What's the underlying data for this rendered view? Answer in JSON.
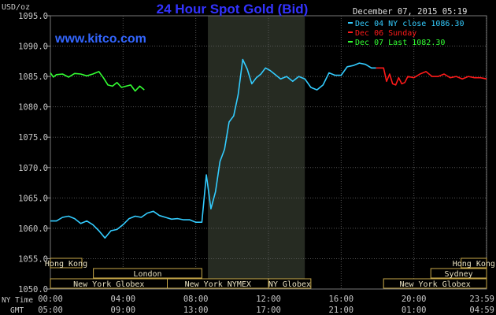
{
  "header": {
    "unit": "USD/oz",
    "title": "24 Hour Spot Gold (Bid)",
    "date": "December 07, 2015 05:19",
    "website": "www.kitco.com"
  },
  "colors": {
    "title": "#3333ff",
    "website": "#3366ff",
    "grid": "#555555",
    "axis_text": "#c8c8c8",
    "highlight": "#262b22",
    "ny_close": "#33ccff",
    "sunday": "#ff1a1a",
    "last": "#33ff33",
    "market_bar_border": "#c8a94a"
  },
  "markets": {
    "row1": [
      {
        "label": "Hong Kong",
        "start": 0,
        "end": 104
      },
      {
        "label": "Hong Kong",
        "start": 1356,
        "end": 1440
      }
    ],
    "row2": [
      {
        "label": "London",
        "start": 142,
        "end": 500
      },
      {
        "label": "Sydney",
        "start": 1256,
        "end": 1440
      }
    ],
    "row3": [
      {
        "label": "New York Globex",
        "start": 0,
        "end": 386
      },
      {
        "label": "New York NYMEX",
        "start": 386,
        "end": 720
      },
      {
        "label": "NY Globex",
        "start": 720,
        "end": 860
      },
      {
        "label": "New York Globex",
        "start": 1100,
        "end": 1440
      }
    ]
  },
  "time_rows": {
    "ny_label": "NY Time",
    "gmt_label": "GMT"
  },
  "chart_data": {
    "type": "line",
    "title": "24 Hour Spot Gold (Bid)",
    "ylabel": "USD/oz",
    "ylim": [
      1050,
      1095
    ],
    "y_ticks": [
      "1050.0",
      "1055.0",
      "1060.0",
      "1065.0",
      "1070.0",
      "1075.0",
      "1080.0",
      "1085.0",
      "1090.0",
      "1095.0"
    ],
    "x_minutes_range": [
      0,
      1440
    ],
    "x_tick_minutes": [
      0,
      240,
      480,
      720,
      960,
      1200,
      1439
    ],
    "x_ticks_ny": [
      "00:00",
      "04:00",
      "08:00",
      "12:00",
      "16:00",
      "20:00",
      "23:59"
    ],
    "x_ticks_gmt": [
      "05:00",
      "09:00",
      "13:00",
      "17:00",
      "21:00",
      "01:00",
      "04:59"
    ],
    "highlight_range_minutes": [
      520,
      840
    ],
    "legend_position": "top-right",
    "legend": [
      {
        "text": "Dec 04 NY close 1086.30",
        "color": "#33ccff"
      },
      {
        "text": "Dec 06 Sunday",
        "color": "#ff1a1a"
      },
      {
        "text": "Dec 07 Last 1082.30",
        "color": "#33ff33"
      }
    ],
    "series": [
      {
        "name": "Dec 04 NY close 1086.30",
        "color": "#33ccff",
        "x": [
          0,
          20,
          40,
          60,
          80,
          100,
          120,
          140,
          160,
          180,
          200,
          220,
          240,
          260,
          280,
          300,
          320,
          340,
          360,
          380,
          400,
          420,
          440,
          460,
          480,
          500,
          515,
          530,
          545,
          560,
          575,
          590,
          605,
          620,
          635,
          650,
          665,
          680,
          695,
          710,
          725,
          740,
          760,
          780,
          800,
          820,
          840,
          860,
          880,
          900,
          920,
          940,
          960,
          980,
          1000,
          1020,
          1040,
          1060,
          1075
        ],
        "y": [
          1061.2,
          1061.2,
          1061.8,
          1062.0,
          1061.6,
          1060.8,
          1061.2,
          1060.6,
          1059.6,
          1058.4,
          1059.6,
          1059.8,
          1060.6,
          1061.6,
          1062.0,
          1061.8,
          1062.5,
          1062.8,
          1062.1,
          1061.8,
          1061.5,
          1061.6,
          1061.4,
          1061.4,
          1061.0,
          1061.0,
          1068.8,
          1063.2,
          1066.0,
          1071.0,
          1073.0,
          1077.5,
          1078.5,
          1082.0,
          1087.8,
          1086.2,
          1083.8,
          1084.8,
          1085.4,
          1086.4,
          1086.0,
          1085.4,
          1084.6,
          1085.0,
          1084.2,
          1085.0,
          1084.6,
          1083.2,
          1082.8,
          1083.6,
          1085.6,
          1085.2,
          1085.2,
          1086.6,
          1086.8,
          1087.2,
          1087.0,
          1086.4,
          1086.4
        ]
      },
      {
        "name": "Dec 06 Sunday",
        "color": "#ff1a1a",
        "x": [
          1075,
          1100,
          1110,
          1120,
          1130,
          1140,
          1150,
          1160,
          1170,
          1180,
          1200,
          1220,
          1240,
          1260,
          1280,
          1300,
          1320,
          1340,
          1360,
          1380,
          1400,
          1420,
          1440
        ],
        "y": [
          1086.4,
          1086.4,
          1084.2,
          1085.4,
          1083.8,
          1083.6,
          1084.8,
          1083.8,
          1084.0,
          1085.0,
          1084.8,
          1085.4,
          1085.8,
          1085.0,
          1085.0,
          1085.4,
          1084.8,
          1085.0,
          1084.6,
          1085.0,
          1084.8,
          1084.8,
          1084.6
        ]
      },
      {
        "name": "Dec 07 Last 1082.30",
        "color": "#33ff33",
        "x": [
          0,
          10,
          20,
          40,
          60,
          80,
          100,
          120,
          140,
          160,
          175,
          190,
          205,
          220,
          235,
          250,
          265,
          280,
          295,
          310
        ],
        "y": [
          1085.6,
          1084.9,
          1085.3,
          1085.4,
          1084.9,
          1085.5,
          1085.4,
          1085.1,
          1085.4,
          1085.8,
          1084.8,
          1083.6,
          1083.4,
          1084.0,
          1083.2,
          1083.4,
          1083.6,
          1082.6,
          1083.4,
          1082.8
        ]
      }
    ]
  }
}
